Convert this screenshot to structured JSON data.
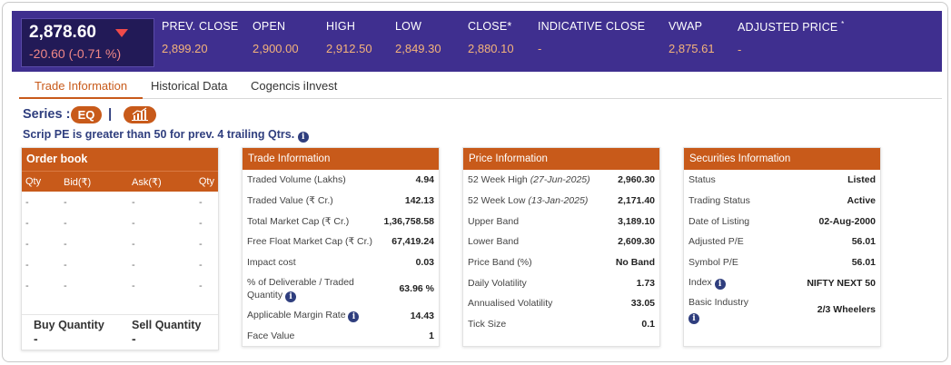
{
  "quote": {
    "last_price": "2,878.60",
    "change": "-20.60 (-0.71 %)",
    "stats": [
      {
        "label": "PREV. CLOSE",
        "value": "2,899.20"
      },
      {
        "label": "OPEN",
        "value": "2,900.00"
      },
      {
        "label": "HIGH",
        "value": "2,912.50"
      },
      {
        "label": "LOW",
        "value": "2,849.30"
      },
      {
        "label": "CLOSE*",
        "value": "2,880.10"
      },
      {
        "label": "INDICATIVE CLOSE",
        "value": "-"
      },
      {
        "label": "VWAP",
        "value": "2,875.61"
      },
      {
        "label": "ADJUSTED PRICE",
        "value": "-"
      }
    ],
    "adjusted_price_mark": "*"
  },
  "tabs": [
    "Trade Information",
    "Historical Data",
    "Cogencis iInvest"
  ],
  "series": {
    "label": "Series :",
    "value": "EQ",
    "separator": "|",
    "note": "Scrip PE is greater than 50 for prev. 4 trailing Qtrs."
  },
  "info_icon_glyph": "i",
  "order_book": {
    "title": "Order book",
    "columns": [
      "Qty",
      "Bid(₹)",
      "Ask(₹)",
      "Qty"
    ],
    "rows": [
      [
        "-",
        "-",
        "-",
        "-"
      ],
      [
        "-",
        "-",
        "-",
        "-"
      ],
      [
        "-",
        "-",
        "-",
        "-"
      ],
      [
        "-",
        "-",
        "-",
        "-"
      ],
      [
        "-",
        "-",
        "-",
        "-"
      ]
    ],
    "buy_label": "Buy Quantity",
    "buy_value": "-",
    "sell_label": "Sell Quantity",
    "sell_value": "-"
  },
  "trade_info": {
    "title": "Trade Information",
    "rows": [
      {
        "k": "Traded Volume (Lakhs)",
        "v": "4.94"
      },
      {
        "k": "Traded Value (₹ Cr.)",
        "v": "142.13"
      },
      {
        "k": "Total Market Cap (₹ Cr.)",
        "v": "1,36,758.58"
      },
      {
        "k": "Free Float Market Cap (₹ Cr.)",
        "v": "67,419.24"
      },
      {
        "k": "Impact cost",
        "v": "0.03"
      },
      {
        "k1": "% of Deliverable / Traded",
        "k2": "Quantity",
        "v": "63.96 %"
      },
      {
        "k": "Applicable Margin Rate",
        "v": "14.43"
      },
      {
        "k": "Face Value",
        "v": "1"
      }
    ]
  },
  "price_info": {
    "title": "Price Information",
    "rows": [
      {
        "k": "52 Week High",
        "date": "(27-Jun-2025)",
        "v": "2,960.30"
      },
      {
        "k": "52 Week Low",
        "date": "(13-Jan-2025)",
        "v": "2,171.40"
      },
      {
        "k": "Upper Band",
        "v": "3,189.10"
      },
      {
        "k": "Lower Band",
        "v": "2,609.30"
      },
      {
        "k": "Price Band (%)",
        "v": "No Band"
      },
      {
        "k": "Daily Volatility",
        "v": "1.73"
      },
      {
        "k": "Annualised Volatility",
        "v": "33.05"
      },
      {
        "k": "Tick Size",
        "v": "0.1"
      }
    ]
  },
  "securities_info": {
    "title": "Securities Information",
    "rows": [
      {
        "k": "Status",
        "v": "Listed"
      },
      {
        "k": "Trading Status",
        "v": "Active"
      },
      {
        "k": "Date of Listing",
        "v": "02-Aug-2000"
      },
      {
        "k": "Adjusted P/E",
        "v": "56.01"
      },
      {
        "k": "Symbol P/E",
        "v": "56.01"
      },
      {
        "k": "Index",
        "v": "NIFTY NEXT 50"
      },
      {
        "k": "Basic Industry",
        "v": "2/3 Wheelers"
      }
    ]
  },
  "colors": {
    "accent": "#c85a1a",
    "header_bg": "#3f2f8f",
    "price_box": "#221a57",
    "down": "#f04a4a",
    "link_blue": "#2f3e7e"
  }
}
